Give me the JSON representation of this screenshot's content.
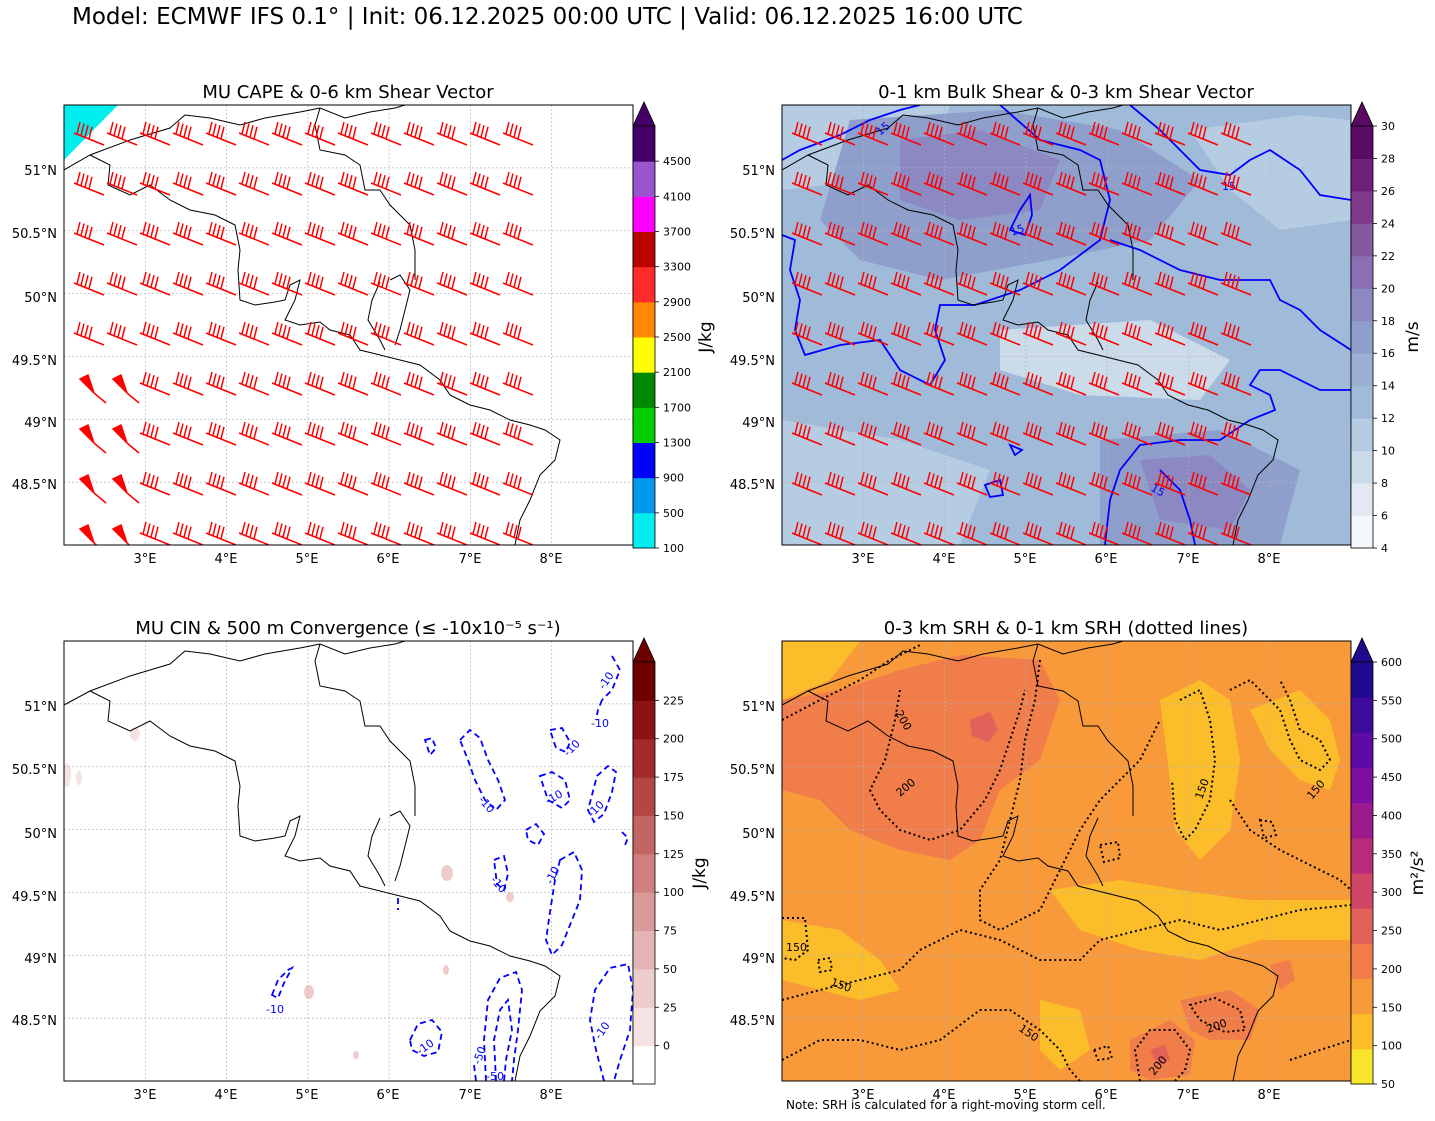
{
  "figure": {
    "title": "Model: ECMWF IFS 0.1° | Init: 06.12.2025 00:00 UTC | Valid: 06.12.2025 16:00 UTC",
    "note": "Note: SRH is calculated for a right-moving storm cell."
  },
  "chart_data": [
    {
      "type": "heatmap",
      "title": "MU CAPE & 0-6 km Shear Vector",
      "x_ticks": [
        "3°E",
        "4°E",
        "5°E",
        "6°E",
        "7°E",
        "8°E"
      ],
      "y_ticks": [
        "51°N",
        "50.5°N",
        "50°N",
        "49.5°N",
        "49°N",
        "48.5°N"
      ],
      "xlim": [
        2.0,
        9.0
      ],
      "ylim": [
        48.0,
        51.5
      ],
      "grid": true,
      "colorbar": {
        "label": "J/kg",
        "extend": "max",
        "tick_labels": [
          "100",
          "500",
          "900",
          "1300",
          "1700",
          "2100",
          "2500",
          "2900",
          "3300",
          "3700",
          "4100",
          "4500"
        ],
        "colors": [
          "#00eeee",
          "#0099ee",
          "#0000ff",
          "#00cc00",
          "#008800",
          "#ffff00",
          "#ff8800",
          "#ff2a2a",
          "#bb0000",
          "#ff00ff",
          "#9955cc",
          "#440066"
        ]
      },
      "filled_regions": [
        {
          "color": "#00eeee",
          "description": "CAPE 100-500 J/kg in far north-west corner"
        }
      ],
      "barb_color": "#ff0000"
    },
    {
      "type": "heatmap",
      "title": "0-1 km Bulk Shear & 0-3 km Shear Vector",
      "x_ticks": [
        "3°E",
        "4°E",
        "5°E",
        "6°E",
        "7°E",
        "8°E"
      ],
      "y_ticks": [
        "51°N",
        "50.5°N",
        "50°N",
        "49.5°N",
        "49°N",
        "48.5°N"
      ],
      "xlim": [
        2.0,
        9.0
      ],
      "ylim": [
        48.0,
        51.5
      ],
      "grid": true,
      "colorbar": {
        "label": "m/s",
        "extend": "max",
        "tick_labels": [
          "4",
          "6",
          "8",
          "10",
          "12",
          "14",
          "16",
          "18",
          "20",
          "22",
          "24",
          "26",
          "28",
          "30"
        ],
        "colors": [
          "#f4f7fb",
          "#e2e9f2",
          "#ccdbe9",
          "#b5cce2",
          "#9fbbd9",
          "#9cb0d4",
          "#8f9fcc",
          "#8b88c2",
          "#8a6fb2",
          "#86589e",
          "#7f3a8c",
          "#70207a",
          "#5a0a62"
        ]
      },
      "contour_lines": [
        {
          "value": 15,
          "label": "15",
          "color": "#0000ff"
        }
      ],
      "barb_color": "#ff0000"
    },
    {
      "type": "heatmap",
      "title": "MU CIN & 500 m Convergence (≤ -10x10⁻⁵ s⁻¹)",
      "x_ticks": [
        "3°E",
        "4°E",
        "5°E",
        "6°E",
        "7°E",
        "8°E"
      ],
      "y_ticks": [
        "51°N",
        "50.5°N",
        "50°N",
        "49.5°N",
        "49°N",
        "48.5°N"
      ],
      "xlim": [
        2.0,
        9.0
      ],
      "ylim": [
        48.0,
        51.5
      ],
      "grid": true,
      "colorbar": {
        "label": "J/kg",
        "extend": "max",
        "tick_labels": [
          "0",
          "25",
          "50",
          "75",
          "100",
          "125",
          "150",
          "175",
          "200",
          "225"
        ],
        "colors": [
          "#ffffff",
          "#f5e3e3",
          "#edcccc",
          "#e4b3b3",
          "#db9a9a",
          "#d07f7f",
          "#c36565",
          "#b44646",
          "#a12a2a",
          "#8a1414",
          "#6e0000"
        ]
      },
      "contour_lines": [
        {
          "value": -10,
          "label": "-10",
          "color": "#0000ff",
          "style": "dashed"
        },
        {
          "value": -50,
          "label": "-50",
          "color": "#0000ff",
          "style": "dashed"
        }
      ]
    },
    {
      "type": "heatmap",
      "title": "0-3 km SRH & 0-1 km SRH (dotted lines)",
      "x_ticks": [
        "3°E",
        "4°E",
        "5°E",
        "6°E",
        "7°E",
        "8°E"
      ],
      "y_ticks": [
        "51°N",
        "50.5°N",
        "50°N",
        "49.5°N",
        "49°N",
        "48.5°N"
      ],
      "xlim": [
        2.0,
        9.0
      ],
      "ylim": [
        48.0,
        51.5
      ],
      "grid": true,
      "colorbar": {
        "label": "m²/s²",
        "extend": "max",
        "tick_labels": [
          "50",
          "100",
          "150",
          "200",
          "250",
          "300",
          "350",
          "400",
          "450",
          "500",
          "550",
          "600"
        ],
        "colors": [
          "#f6e52a",
          "#fbbd29",
          "#f99a3a",
          "#f07d4a",
          "#e26158",
          "#cf4565",
          "#b52c7a",
          "#9b1b8e",
          "#7c0ea2",
          "#5f0aa6",
          "#3e0a9c",
          "#220a8e"
        ]
      },
      "contour_lines": [
        {
          "value": 150,
          "label": "150",
          "color": "#000000",
          "style": "dotted"
        },
        {
          "value": 200,
          "label": "200",
          "color": "#000000",
          "style": "dotted"
        }
      ]
    }
  ]
}
